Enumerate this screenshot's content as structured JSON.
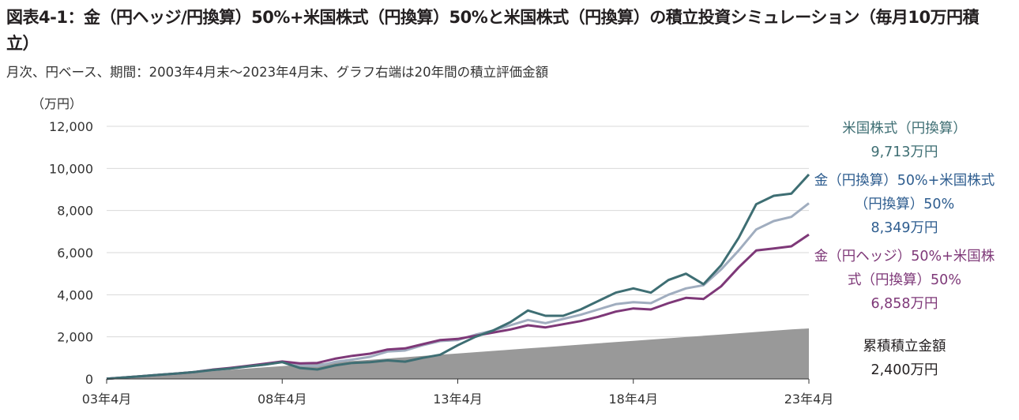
{
  "title": "図表4-1：金（円ヘッジ/円換算）50%+米国株式（円換算）50%と米国株式（円換算）の積立投資シミュレーション（毎月10万円積立）",
  "subtitle": "月次、円ベース、期間：2003年4月末～2023年4月末、グラフ右端は20年間の積立評価金額",
  "unit": "（万円）",
  "chart_data": {
    "type": "line",
    "x": [
      "03年4月",
      "03年10月",
      "04年4月",
      "04年10月",
      "05年4月",
      "05年10月",
      "06年4月",
      "06年10月",
      "07年4月",
      "07年10月",
      "08年4月",
      "08年10月",
      "09年4月",
      "09年10月",
      "10年4月",
      "10年10月",
      "11年4月",
      "11年10月",
      "12年4月",
      "12年10月",
      "13年4月",
      "13年10月",
      "14年4月",
      "14年10月",
      "15年4月",
      "15年10月",
      "16年4月",
      "16年10月",
      "17年4月",
      "17年10月",
      "18年4月",
      "18年10月",
      "19年4月",
      "19年10月",
      "20年4月",
      "20年10月",
      "21年4月",
      "21年10月",
      "22年4月",
      "22年10月",
      "23年4月"
    ],
    "xticks": [
      "03年4月",
      "08年4月",
      "13年4月",
      "18年4月",
      "23年4月"
    ],
    "ylim": [
      0,
      12000
    ],
    "yticks": [
      "0",
      "2,000",
      "4,000",
      "6,000",
      "8,000",
      "10,000",
      "12,000"
    ],
    "series": [
      {
        "name": "米国株式（円換算）",
        "color": "#3e6e73",
        "end_label": "9,713万円",
        "values": [
          10,
          70,
          130,
          200,
          260,
          330,
          420,
          490,
          590,
          680,
          800,
          520,
          450,
          640,
          760,
          800,
          880,
          820,
          1000,
          1150,
          1600,
          2000,
          2300,
          2700,
          3250,
          3000,
          3000,
          3300,
          3700,
          4100,
          4300,
          4100,
          4700,
          5000,
          4500,
          5400,
          6700,
          8300,
          8700,
          8800,
          9713
        ]
      },
      {
        "name": "金（円換算）50%+米国株式（円換算）50%",
        "color": "#a0adbf",
        "end_label": "8,349万円",
        "values": [
          10,
          70,
          130,
          200,
          260,
          330,
          420,
          490,
          590,
          680,
          800,
          650,
          620,
          810,
          920,
          1050,
          1300,
          1350,
          1600,
          1800,
          1850,
          2100,
          2300,
          2550,
          2800,
          2650,
          2850,
          3050,
          3300,
          3550,
          3650,
          3600,
          4000,
          4300,
          4450,
          5200,
          6100,
          7100,
          7500,
          7700,
          8349
        ]
      },
      {
        "name": "金（円ヘッジ）50%+米国株式（円換算）50%",
        "color": "#7e3878",
        "end_label": "6,858万円",
        "values": [
          10,
          70,
          130,
          200,
          260,
          330,
          440,
          520,
          620,
          720,
          830,
          740,
          760,
          960,
          1100,
          1200,
          1400,
          1450,
          1650,
          1850,
          1900,
          2050,
          2200,
          2350,
          2550,
          2450,
          2600,
          2750,
          2950,
          3200,
          3350,
          3300,
          3600,
          3850,
          3800,
          4400,
          5300,
          6100,
          6200,
          6300,
          6858
        ]
      },
      {
        "name": "累積積立金額",
        "color": "#999999",
        "end_label": "2,400万円",
        "values": [
          10,
          70,
          130,
          190,
          250,
          310,
          370,
          430,
          490,
          550,
          610,
          670,
          730,
          790,
          850,
          910,
          970,
          1030,
          1090,
          1150,
          1210,
          1270,
          1330,
          1390,
          1450,
          1510,
          1570,
          1630,
          1690,
          1750,
          1810,
          1870,
          1930,
          1990,
          2050,
          2110,
          2170,
          2230,
          2290,
          2350,
          2400
        ]
      }
    ]
  }
}
